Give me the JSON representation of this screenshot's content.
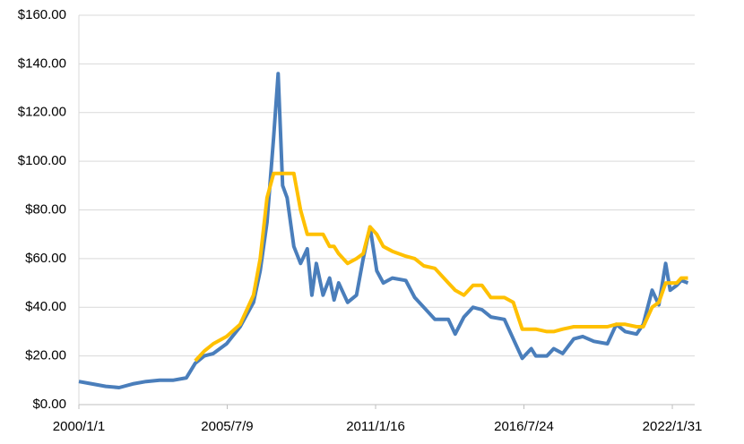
{
  "chart_data": {
    "type": "line",
    "x": [
      "2000/1/1",
      "2000/7/1",
      "2001/1/1",
      "2001/7/1",
      "2002/1/1",
      "2002/7/1",
      "2003/1/1",
      "2003/7/1",
      "2004/1/1",
      "2004/5/1",
      "2004/9/1",
      "2005/1/1",
      "2005/7/1",
      "2006/1/1",
      "2006/7/1",
      "2006/10/1",
      "2007/1/1",
      "2007/4/1",
      "2007/6/1",
      "2007/8/1",
      "2007/10/1",
      "2008/1/1",
      "2008/4/1",
      "2008/7/1",
      "2008/9/1",
      "2008/11/1",
      "2009/2/1",
      "2009/5/1",
      "2009/7/1",
      "2009/9/1",
      "2010/1/1",
      "2010/5/1",
      "2010/8/1",
      "2010/11/1",
      "2011/2/1",
      "2011/5/1",
      "2011/9/1",
      "2012/3/1",
      "2012/7/1",
      "2012/11/1",
      "2013/4/1",
      "2013/10/1",
      "2014/1/1",
      "2014/5/1",
      "2014/9/1",
      "2015/1/1",
      "2015/5/1",
      "2015/11/1",
      "2016/3/1",
      "2016/7/1",
      "2016/11/1",
      "2017/1/1",
      "2017/6/1",
      "2017/9/1",
      "2018/1/1",
      "2018/6/1",
      "2018/10/1",
      "2019/3/1",
      "2019/9/1",
      "2020/1/1",
      "2020/5/1",
      "2020/10/1",
      "2021/1/1",
      "2021/5/1",
      "2021/8/1",
      "2021/11/1",
      "2022/1/1",
      "2022/4/1",
      "2022/6/1",
      "2022/9/1"
    ],
    "series": [
      {
        "color": "#4a7ebb",
        "values": [
          9.5,
          8.5,
          7.5,
          7,
          8.5,
          9.5,
          10,
          10,
          11,
          17,
          20,
          21,
          25,
          32,
          42,
          55,
          75,
          110,
          136,
          90,
          85,
          65,
          58,
          64,
          45,
          58,
          45,
          52,
          43,
          50,
          42,
          45,
          60,
          73,
          55,
          50,
          52,
          51,
          44,
          40,
          35,
          35,
          29,
          36,
          40,
          39,
          36,
          35,
          27,
          19,
          23,
          20,
          20,
          23,
          21,
          27,
          28,
          26,
          25,
          33,
          30,
          29,
          33,
          47,
          41,
          58,
          47,
          49,
          51,
          50
        ]
      },
      {
        "color": "#ffc000",
        "values": [
          null,
          null,
          null,
          null,
          null,
          null,
          null,
          null,
          null,
          18,
          22,
          25,
          28,
          33,
          45,
          60,
          85,
          95,
          95,
          95,
          95,
          95,
          80,
          70,
          70,
          70,
          70,
          65,
          65,
          62,
          58,
          60,
          62,
          73,
          70,
          65,
          63,
          61,
          60,
          57,
          56,
          50,
          47,
          45,
          49,
          49,
          44,
          44,
          42,
          31,
          31,
          31,
          30,
          30,
          31,
          32,
          32,
          32,
          32,
          33,
          33,
          32,
          32,
          40,
          42,
          50,
          50,
          50,
          52,
          52
        ]
      }
    ],
    "xlim": [
      "2000/1/1",
      "2022/12/1"
    ],
    "xticks": [
      "2000/1/1",
      "2005/7/9",
      "2011/1/16",
      "2016/7/24",
      "2022/1/31"
    ],
    "ylim": [
      0,
      160
    ],
    "yticks": [
      {
        "value": 0,
        "label": "$0.00"
      },
      {
        "value": 20,
        "label": "$20.00"
      },
      {
        "value": 40,
        "label": "$40.00"
      },
      {
        "value": 60,
        "label": "$60.00"
      },
      {
        "value": 80,
        "label": "$80.00"
      },
      {
        "value": 100,
        "label": "$100.00"
      },
      {
        "value": 120,
        "label": "$120.00"
      },
      {
        "value": 140,
        "label": "$140.00"
      },
      {
        "value": 160,
        "label": "$160.00"
      }
    ],
    "grid": true
  }
}
